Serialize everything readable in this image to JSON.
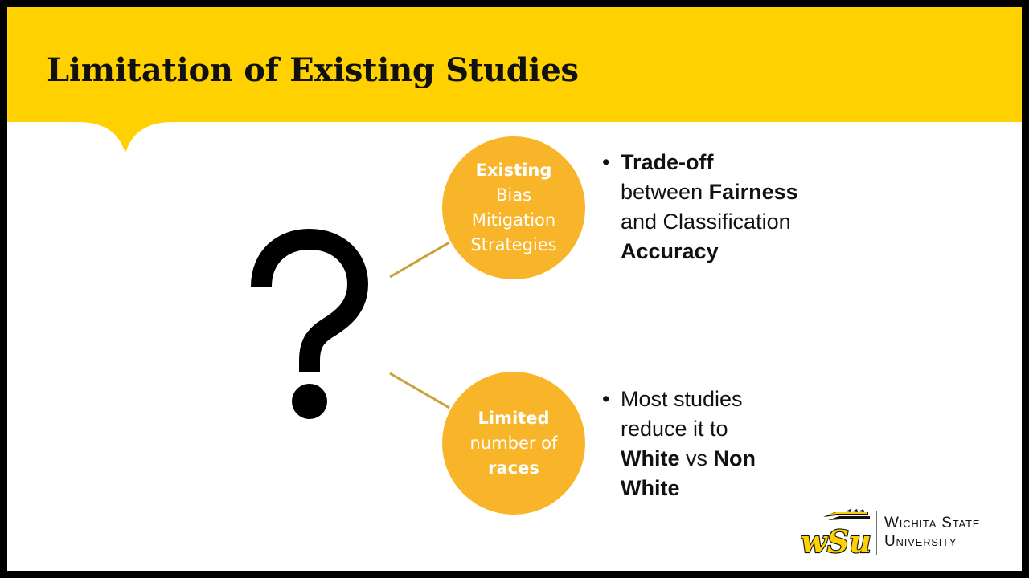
{
  "title": "Limitation of Existing Studies",
  "colors": {
    "header": "#FFD100",
    "circle": "#F9B52A",
    "connector": "#C9A13A"
  },
  "icons": {
    "question": "question-mark-icon",
    "logo": "wsu-wheat-shocker-logo"
  },
  "items": [
    {
      "circle": {
        "line1": "Existing",
        "line2": "Bias",
        "line3": "Mitigation",
        "line4": "Strategies"
      },
      "bullet": {
        "mark": "•",
        "p1": "Trade-off",
        "p2": "between ",
        "p3": "Fairness",
        "p4": "and Classification",
        "p5": "Accuracy"
      }
    },
    {
      "circle": {
        "line1": "Limited",
        "line2": "number of",
        "line3": "races"
      },
      "bullet": {
        "mark": "•",
        "p1": "Most studies",
        "p2": "reduce it to",
        "p3": "White",
        "p4": " vs ",
        "p5": "Non",
        "p6": "White"
      }
    }
  ],
  "logo": {
    "mark_text": "wSu",
    "line1": "Wichita State",
    "line2": "University"
  }
}
